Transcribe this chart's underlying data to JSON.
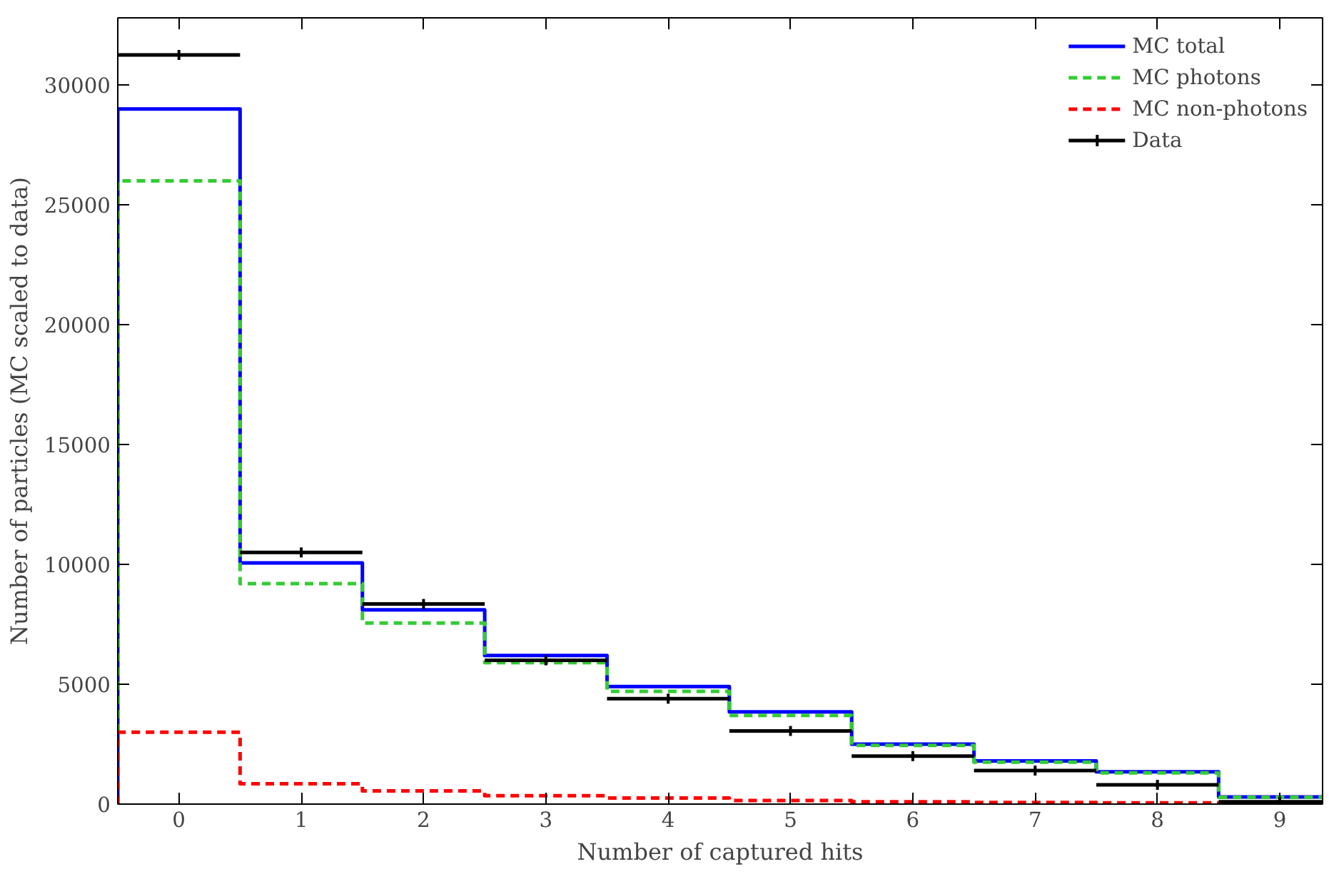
{
  "chart_data": {
    "type": "histogram",
    "xlabel": "Number of captured hits",
    "ylabel": "Number of particles (MC scaled to data)",
    "bins": [
      -0.5,
      0.5,
      1.5,
      2.5,
      3.5,
      4.5,
      5.5,
      6.5,
      7.5,
      8.5,
      9.5
    ],
    "series": [
      {
        "name": "MC total",
        "color": "#0000ff",
        "line_style": "solid",
        "values": [
          29000,
          10060,
          8100,
          6200,
          4900,
          3850,
          2500,
          1800,
          1350,
          300
        ]
      },
      {
        "name": "MC photons",
        "color": "#33cc33",
        "line_style": "dashed",
        "values": [
          26000,
          9200,
          7550,
          5900,
          4700,
          3700,
          2450,
          1750,
          1300,
          280
        ]
      },
      {
        "name": "MC non-photons",
        "color": "#ff0000",
        "line_style": "dashed",
        "values": [
          3000,
          850,
          550,
          350,
          250,
          150,
          100,
          70,
          50,
          20
        ]
      },
      {
        "name": "Data",
        "type": "scatter",
        "marker": "cross",
        "color": "#000000",
        "x": [
          0,
          1,
          2,
          3,
          4,
          5,
          6,
          7,
          8,
          9
        ],
        "values": [
          31250,
          10500,
          8350,
          6000,
          4400,
          3050,
          2000,
          1400,
          800,
          100
        ],
        "xerrors": [
          0.5,
          0.5,
          0.5,
          0.5,
          0.5,
          0.5,
          0.5,
          0.5,
          0.5,
          0.5
        ]
      }
    ],
    "xlim": [
      -0.5,
      9.35
    ],
    "ylim": [
      0,
      32800
    ],
    "xticks": [
      0,
      1,
      2,
      3,
      4,
      5,
      6,
      7,
      8,
      9
    ],
    "yticks": [
      0,
      5000,
      10000,
      15000,
      20000,
      25000,
      30000
    ],
    "grid": false,
    "legend": "top right"
  }
}
